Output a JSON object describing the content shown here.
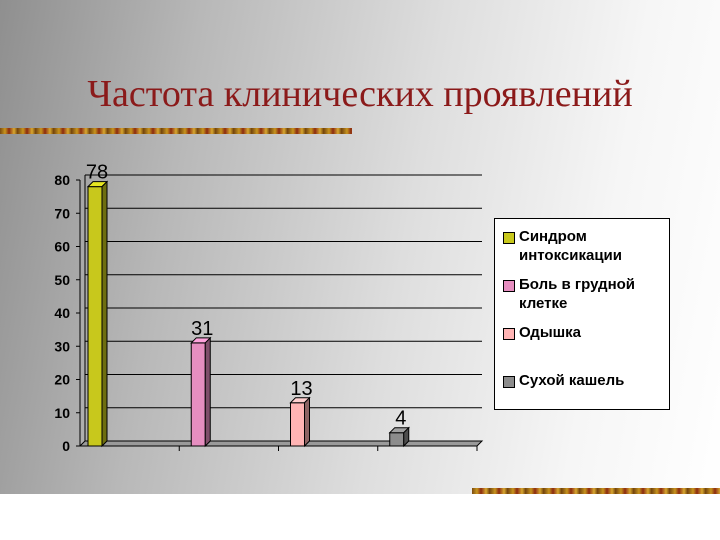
{
  "title": "Частота клинических проявлений",
  "chart_data": {
    "type": "bar",
    "categories": [
      "Синдром интоксикации",
      "Боль в грудной клетке",
      "Одышка",
      "Сухой кашель"
    ],
    "values": [
      78,
      31,
      13,
      4
    ],
    "colors": [
      "#c8c81c",
      "#e68ec0",
      "#ffb4b4",
      "#8c8c8c"
    ],
    "ylim": [
      0,
      80
    ],
    "yticks": [
      "0",
      "10",
      "20",
      "30",
      "40",
      "50",
      "60",
      "70",
      "80"
    ],
    "data_labels": [
      "78",
      "31",
      "13",
      "4"
    ],
    "grid": true,
    "legend": "right"
  },
  "legend": {
    "items": [
      {
        "label": "Синдром интоксикации",
        "color": "#c8c81c"
      },
      {
        "label": "Боль в грудной клетке",
        "color": "#e68ec0"
      },
      {
        "label": "Одышка",
        "color": "#ffb4b4"
      },
      {
        "label": "Сухой кашель",
        "color": "#8c8c8c"
      }
    ]
  }
}
